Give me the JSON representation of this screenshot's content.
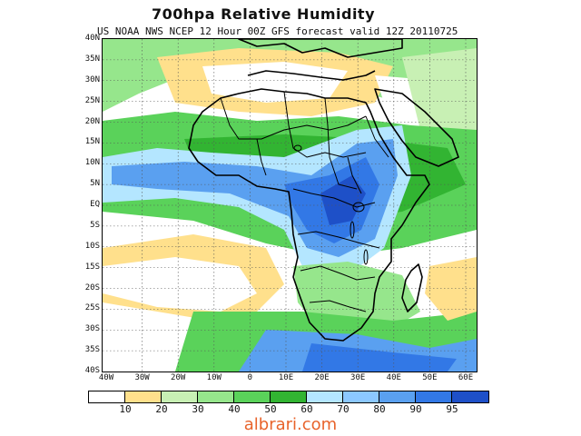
{
  "title": "700hpa Relative Humidity",
  "subtitle": "US NOAA NWS NCEP 12 Hour 00Z GFS forecast valid 12Z 20110725",
  "lat_labels": [
    "40N",
    "35N",
    "30N",
    "25N",
    "20N",
    "15N",
    "10N",
    "5N",
    "EQ",
    "5S",
    "10S",
    "15S",
    "20S",
    "25S",
    "30S",
    "35S",
    "40S"
  ],
  "lon_labels": [
    "40W",
    "30W",
    "20W",
    "10W",
    "0",
    "10E",
    "20E",
    "30E",
    "40E",
    "50E",
    "60E"
  ],
  "colorbar": {
    "colors": [
      "#ffffff",
      "#ffe08c",
      "#c8f0b4",
      "#96e68c",
      "#5ad25a",
      "#32b432",
      "#b4e6ff",
      "#8cc8ff",
      "#5aa0f0",
      "#3278e6",
      "#1e50c8"
    ],
    "labels": [
      "10",
      "20",
      "30",
      "40",
      "50",
      "60",
      "70",
      "80",
      "90",
      "95"
    ]
  },
  "watermark": "albrari.com",
  "map_colors": {
    "ocean": "#ffffff",
    "dry": "#ffe08c",
    "light_green": "#c8f0b4",
    "mid_green": "#96e68c",
    "green": "#5ad25a",
    "dark_green": "#32b432",
    "light_blue": "#b4e6ff",
    "blue": "#5aa0f0",
    "dark_blue": "#3278e6",
    "deep_blue": "#1e50c8",
    "border": "#000000",
    "grid": "#555555"
  }
}
